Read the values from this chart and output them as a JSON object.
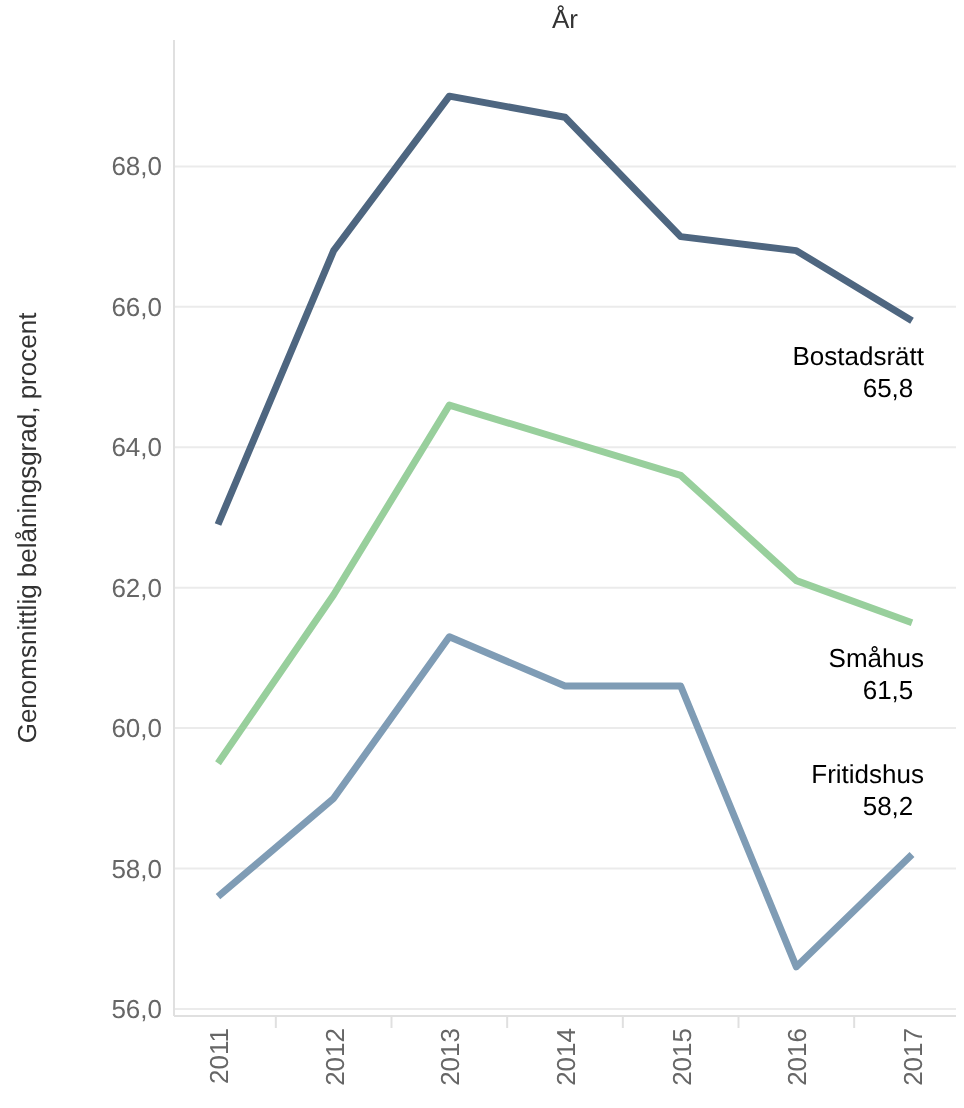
{
  "chart_data": {
    "type": "line",
    "xlabel": "År",
    "ylabel": "Genomsnittlig belåningsgrad, procent",
    "categories": [
      "2011",
      "2012",
      "2013",
      "2014",
      "2015",
      "2016",
      "2017"
    ],
    "series": [
      {
        "name": "Bostadsrätt",
        "color": "#4e6680",
        "values": [
          62.9,
          66.8,
          69.0,
          68.7,
          67.0,
          66.8,
          65.8
        ],
        "value_labels": [
          null,
          null,
          null,
          null,
          null,
          null,
          "65,8"
        ]
      },
      {
        "name": "Småhus",
        "color": "#98cf9c",
        "values": [
          59.5,
          61.9,
          64.6,
          64.1,
          63.6,
          62.1,
          61.5
        ],
        "value_labels": [
          null,
          null,
          null,
          null,
          null,
          null,
          "61,5"
        ]
      },
      {
        "name": "Fritidshus",
        "color": "#7f9cb5",
        "values": [
          57.6,
          59.0,
          61.3,
          60.6,
          60.6,
          56.6,
          58.2
        ],
        "value_labels": [
          null,
          null,
          null,
          null,
          null,
          null,
          "58,2"
        ]
      }
    ],
    "ylim": [
      55.9,
      69.8
    ],
    "yticks": [
      {
        "value": 56,
        "label": "56,0"
      },
      {
        "value": 58,
        "label": "58,0"
      },
      {
        "value": 60,
        "label": "60,0"
      },
      {
        "value": 62,
        "label": "62,0"
      },
      {
        "value": 64,
        "label": "64,0"
      },
      {
        "value": 66,
        "label": "66,0"
      },
      {
        "value": 68,
        "label": "68,0"
      }
    ],
    "grid": "y",
    "marker": "none",
    "line_style": "solid"
  }
}
